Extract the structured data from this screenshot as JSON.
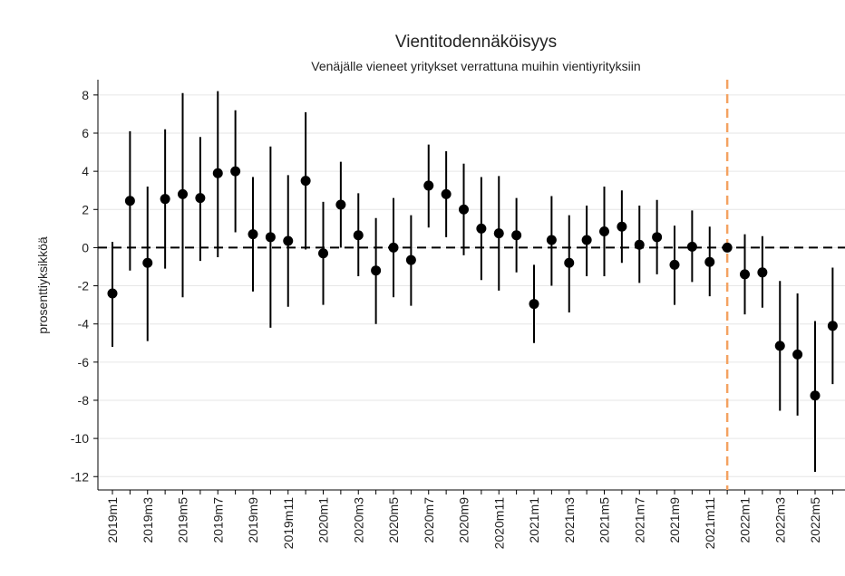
{
  "chart_data": {
    "type": "errorbar",
    "title": "Vientitodennäköisyys",
    "subtitle": "Venäjälle vieneet yritykset verrattuna muihin vientiyrityksiin",
    "ylabel": "prosenttiyksikköä",
    "categories": [
      "2019m1",
      null,
      "2019m3",
      null,
      "2019m5",
      null,
      "2019m7",
      null,
      "2019m9",
      null,
      "2019m11",
      null,
      "2020m1",
      null,
      "2020m3",
      null,
      "2020m5",
      null,
      "2020m7",
      null,
      "2020m9",
      null,
      "2020m11",
      null,
      "2021m1",
      null,
      "2021m3",
      null,
      "2021m5",
      null,
      "2021m7",
      null,
      "2021m9",
      null,
      "2021m11",
      null,
      "2022m1",
      null,
      "2022m3",
      null,
      "2022m5",
      null
    ],
    "values": [
      -2.4,
      2.45,
      -0.8,
      2.55,
      2.8,
      2.6,
      3.9,
      4.0,
      0.7,
      0.55,
      0.35,
      3.5,
      -0.3,
      2.25,
      0.65,
      -1.2,
      0,
      -0.65,
      3.25,
      2.8,
      2.0,
      1.0,
      0.75,
      0.65,
      -2.95,
      0.4,
      -0.8,
      0.4,
      0.85,
      1.1,
      0.15,
      0.55,
      -0.9,
      0.05,
      -0.75,
      0,
      -1.4,
      -1.3,
      -5.15,
      -5.6,
      -7.75,
      -4.1
    ],
    "upper": [
      0.3,
      6.1,
      3.2,
      6.2,
      8.1,
      5.8,
      8.2,
      7.2,
      3.7,
      5.3,
      3.8,
      7.1,
      2.4,
      4.5,
      2.85,
      1.55,
      2.6,
      1.7,
      5.4,
      5.05,
      4.4,
      3.7,
      3.75,
      2.6,
      -0.9,
      2.7,
      1.7,
      2.2,
      3.2,
      3.0,
      2.2,
      2.5,
      1.15,
      1.95,
      1.1,
      null,
      0.7,
      0.6,
      -1.75,
      -2.4,
      -3.85,
      -1.05
    ],
    "lower": [
      -5.2,
      -1.2,
      -4.9,
      -1.1,
      -2.6,
      -0.7,
      -0.5,
      0.8,
      -2.3,
      -4.2,
      -3.1,
      -0.1,
      -3.0,
      0,
      -1.5,
      -4.0,
      -2.6,
      -3.05,
      1.05,
      0.55,
      -0.4,
      -1.7,
      -2.25,
      -1.3,
      -5.0,
      -2.0,
      -3.4,
      -1.5,
      -1.5,
      -0.8,
      -1.85,
      -1.4,
      -3.0,
      -1.8,
      -2.55,
      null,
      -3.5,
      -3.15,
      -8.55,
      -8.8,
      -11.75,
      -7.15
    ],
    "color": "#000000",
    "ylim": [
      -12.7,
      8.8
    ],
    "yticks": [
      -12,
      -10,
      -8,
      -6,
      -4,
      -2,
      0,
      2,
      4,
      6,
      8
    ],
    "grid": true,
    "hline": 0,
    "vline_category": 35,
    "vline_color": "#f4a261"
  }
}
